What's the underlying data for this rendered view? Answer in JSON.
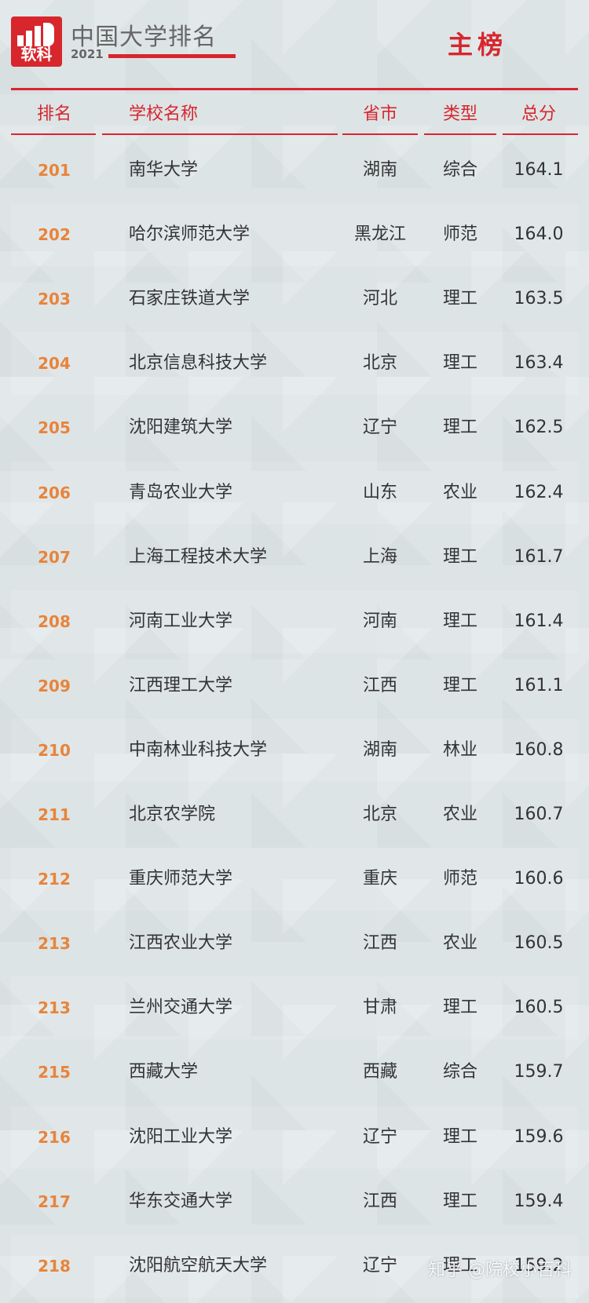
{
  "header": {
    "logo": "软科",
    "title": "中国大学排名",
    "year": "2021",
    "list": "主榜"
  },
  "table": {
    "columns": [
      "排名",
      "学校名称",
      "省市",
      "类型",
      "总分"
    ],
    "rows": [
      [
        "201",
        "南华大学",
        "湖南",
        "综合",
        "164.1"
      ],
      [
        "202",
        "哈尔滨师范大学",
        "黑龙江",
        "师范",
        "164.0"
      ],
      [
        "203",
        "石家庄铁道大学",
        "河北",
        "理工",
        "163.5"
      ],
      [
        "204",
        "北京信息科技大学",
        "北京",
        "理工",
        "163.4"
      ],
      [
        "205",
        "沈阳建筑大学",
        "辽宁",
        "理工",
        "162.5"
      ],
      [
        "206",
        "青岛农业大学",
        "山东",
        "农业",
        "162.4"
      ],
      [
        "207",
        "上海工程技术大学",
        "上海",
        "理工",
        "161.7"
      ],
      [
        "208",
        "河南工业大学",
        "河南",
        "理工",
        "161.4"
      ],
      [
        "209",
        "江西理工大学",
        "江西",
        "理工",
        "161.1"
      ],
      [
        "210",
        "中南林业科技大学",
        "湖南",
        "林业",
        "160.8"
      ],
      [
        "211",
        "北京农学院",
        "北京",
        "农业",
        "160.7"
      ],
      [
        "212",
        "重庆师范大学",
        "重庆",
        "师范",
        "160.6"
      ],
      [
        "213",
        "江西农业大学",
        "江西",
        "农业",
        "160.5"
      ],
      [
        "213",
        "兰州交通大学",
        "甘肃",
        "理工",
        "160.5"
      ],
      [
        "215",
        "西藏大学",
        "西藏",
        "综合",
        "159.7"
      ],
      [
        "216",
        "沈阳工业大学",
        "辽宁",
        "理工",
        "159.6"
      ],
      [
        "217",
        "华东交通大学",
        "江西",
        "理工",
        "159.4"
      ],
      [
        "218",
        "沈阳航空航天大学",
        "辽宁",
        "理工",
        "159.2"
      ]
    ]
  },
  "watermark": "知乎 @院校小百科"
}
